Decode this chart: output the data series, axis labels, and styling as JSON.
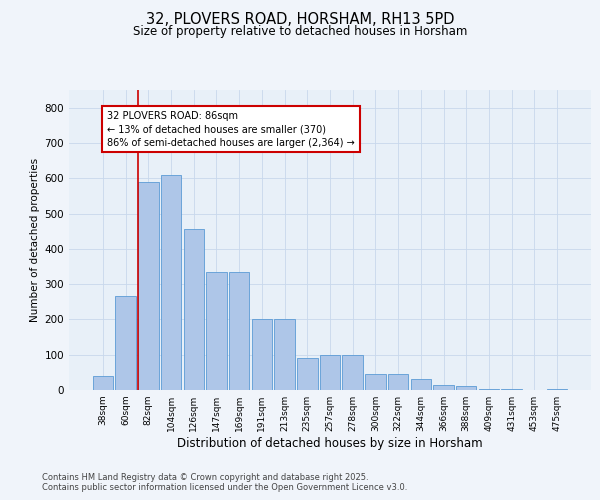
{
  "title": "32, PLOVERS ROAD, HORSHAM, RH13 5PD",
  "subtitle": "Size of property relative to detached houses in Horsham",
  "xlabel": "Distribution of detached houses by size in Horsham",
  "ylabel": "Number of detached properties",
  "categories": [
    "38sqm",
    "60sqm",
    "82sqm",
    "104sqm",
    "126sqm",
    "147sqm",
    "169sqm",
    "191sqm",
    "213sqm",
    "235sqm",
    "257sqm",
    "278sqm",
    "300sqm",
    "322sqm",
    "344sqm",
    "366sqm",
    "388sqm",
    "409sqm",
    "431sqm",
    "453sqm",
    "475sqm"
  ],
  "values": [
    40,
    265,
    590,
    610,
    455,
    335,
    335,
    200,
    200,
    90,
    100,
    100,
    45,
    45,
    30,
    15,
    12,
    3,
    2,
    1,
    3
  ],
  "bar_color": "#aec6e8",
  "bar_edge_color": "#5b9bd5",
  "vline_index": 2,
  "vline_color": "#cc0000",
  "annotation_text": "32 PLOVERS ROAD: 86sqm\n← 13% of detached houses are smaller (370)\n86% of semi-detached houses are larger (2,364) →",
  "annotation_box_color": "#ffffff",
  "annotation_box_edgecolor": "#cc0000",
  "ylim": [
    0,
    850
  ],
  "yticks": [
    0,
    100,
    200,
    300,
    400,
    500,
    600,
    700,
    800
  ],
  "grid_color": "#c8d8ec",
  "footer_text": "Contains HM Land Registry data © Crown copyright and database right 2025.\nContains public sector information licensed under the Open Government Licence v3.0.",
  "bg_color": "#e8f0f8",
  "fig_bg_color": "#f0f4fa"
}
